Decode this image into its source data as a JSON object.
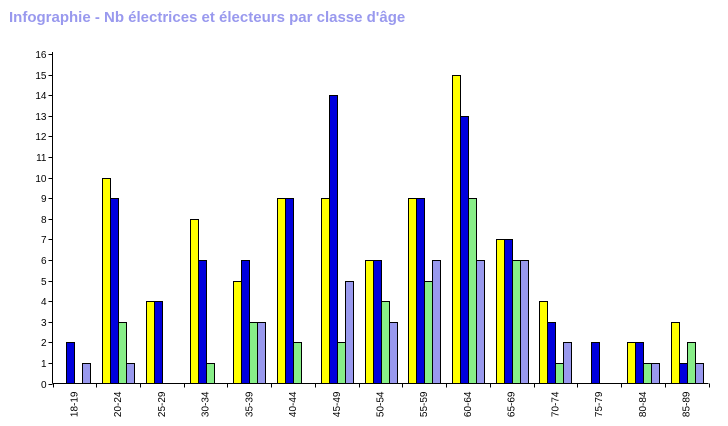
{
  "chart_data": {
    "type": "bar",
    "title": "Infographie - Nb électrices et électeurs par classe d'âge",
    "xlabel": "",
    "ylabel": "",
    "ylim": [
      0,
      16
    ],
    "yticks": [
      0,
      1,
      2,
      3,
      4,
      5,
      6,
      7,
      8,
      9,
      10,
      11,
      12,
      13,
      14,
      15,
      16
    ],
    "grid": false,
    "legend": "none",
    "categories": [
      "18-19",
      "20-24",
      "25-29",
      "30-34",
      "35-39",
      "40-44",
      "45-49",
      "50-54",
      "55-59",
      "60-64",
      "65-69",
      "70-74",
      "75-79",
      "80-84",
      "85-89"
    ],
    "series": [
      {
        "color": "#ffff00",
        "values": [
          0,
          10,
          4,
          8,
          5,
          9,
          9,
          6,
          9,
          15,
          7,
          4,
          0,
          2,
          3
        ]
      },
      {
        "color": "#0000dd",
        "values": [
          2,
          9,
          4,
          6,
          6,
          9,
          14,
          6,
          9,
          13,
          7,
          3,
          2,
          2,
          1
        ]
      },
      {
        "color": "#88ee88",
        "values": [
          0,
          3,
          0,
          1,
          3,
          2,
          2,
          4,
          5,
          9,
          6,
          1,
          0,
          1,
          2
        ]
      },
      {
        "color": "#9999ee",
        "values": [
          1,
          1,
          0,
          0,
          3,
          0,
          5,
          3,
          6,
          6,
          6,
          2,
          0,
          1,
          1
        ]
      }
    ]
  }
}
